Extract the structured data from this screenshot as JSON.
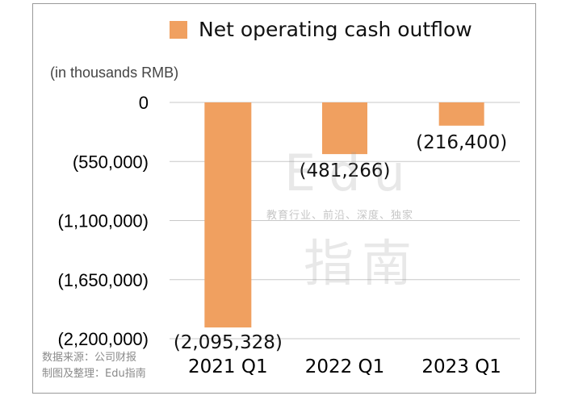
{
  "chart_data": {
    "type": "bar",
    "series": [
      {
        "name": "Net operating cash outflow",
        "values": [
          -2095328,
          -481266,
          -216400
        ]
      }
    ],
    "categories": [
      "2021 Q1",
      "2022 Q1",
      "2023 Q1"
    ],
    "data_labels": [
      "(2,095,328)",
      "(481,266)",
      "(216,400)"
    ],
    "ylim": [
      -2200000,
      0
    ],
    "yticks": [
      0,
      -550000,
      -1100000,
      -1650000,
      -2200000
    ],
    "ytick_labels": [
      "0",
      "(550,000)",
      "(1,100,000)",
      "(1,650,000)",
      "(2,200,000)"
    ],
    "unit_label": "(in thousands RMB)",
    "grid": true,
    "legend_position": "top",
    "bar_color": "#F0A060"
  },
  "watermark": {
    "logo_text": "Edu",
    "tagline": "教育行业、前沿、深度、独家",
    "logo_cn": "指南"
  },
  "source": {
    "line1": "数据来源：公司财报",
    "line2": "制图及整理：Edu指南"
  }
}
